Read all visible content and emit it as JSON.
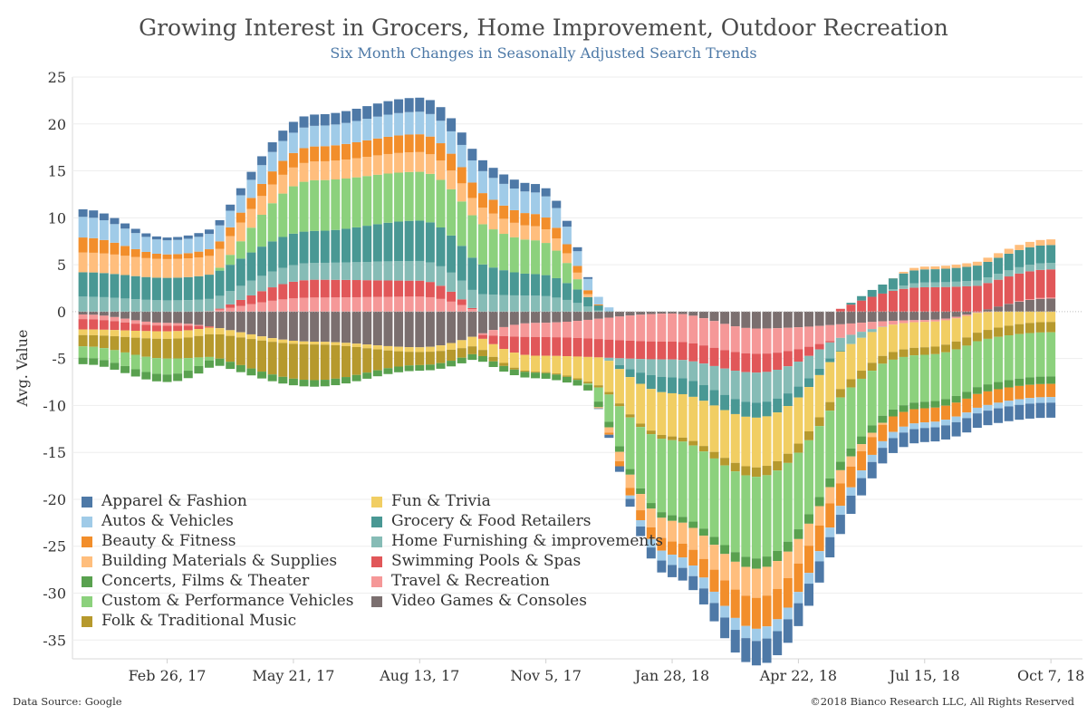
{
  "header": {
    "title": "Growing Interest in Grocers, Home Improvement, Outdoor Recreation",
    "subtitle": "Six Month Changes in Seasonally Adjusted Search Trends"
  },
  "footer": {
    "source": "Data Source: Google",
    "copyright": "©2018 Bianco Research LLC, All Rights Reserved"
  },
  "chart_data": {
    "type": "bar",
    "stacked": true,
    "title": "Growing Interest in Grocers, Home Improvement, Outdoor Recreation",
    "subtitle": "Six Month Changes in Seasonally Adjusted Search Trends",
    "ylabel": "Avg. Value",
    "xlabel": "",
    "ylim": [
      -37,
      25
    ],
    "yticks": [
      25,
      20,
      15,
      10,
      5,
      0,
      -5,
      -10,
      -15,
      -20,
      -25,
      -30,
      -35
    ],
    "xlim": [
      "Dec 25, 16",
      "Oct 28, 18"
    ],
    "xticks": [
      "Feb 26, 17",
      "May 21, 17",
      "Aug 13, 17",
      "Nov 5, 17",
      "Jan 28, 18",
      "Apr 22, 18",
      "Jul 15, 18",
      "Oct 7, 18"
    ],
    "x_start": "Jan 1, 17",
    "x_end": "Oct 7, 18",
    "x_interval": "weekly",
    "key_dates": [
      "Jan 1, 17",
      "Feb 26, 17",
      "Jun 4, 17",
      "Aug 13, 17",
      "Oct 29, 17",
      "Jan 28, 18",
      "Mar 25, 18",
      "Jul 15, 18",
      "Oct 7, 18"
    ],
    "legend_position": "bottom-left",
    "grid": true,
    "series": [
      {
        "name": "Video Games & Consoles",
        "color": "#7b6f6f",
        "keypoints": [
          -0.3,
          -1.2,
          -3.2,
          -3.8,
          -1.2,
          -0.2,
          -1.8,
          -0.9,
          1.4
        ]
      },
      {
        "name": "Travel & Recreation",
        "color": "#f59898",
        "keypoints": [
          -0.5,
          -0.3,
          1.5,
          1.6,
          -1.5,
          -3.0,
          -2.7,
          -0.2,
          0.1
        ]
      },
      {
        "name": "Swimming Pools & Spas",
        "color": "#e15759",
        "keypoints": [
          -1.1,
          -0.6,
          1.9,
          1.7,
          -2.0,
          -1.9,
          -2.0,
          2.6,
          3.0
        ]
      },
      {
        "name": "Home Furnishing & improvements",
        "color": "#86bcb6",
        "keypoints": [
          1.6,
          1.2,
          1.8,
          2.1,
          1.7,
          -1.9,
          -3.2,
          0.5,
          0.7
        ]
      },
      {
        "name": "Grocery & Food Retailers",
        "color": "#499894",
        "keypoints": [
          2.6,
          2.4,
          3.4,
          4.3,
          2.3,
          -1.7,
          -1.6,
          1.4,
          1.9
        ]
      },
      {
        "name": "Fun & Trivia",
        "color": "#f1ce63",
        "keypoints": [
          -0.6,
          -0.8,
          -0.3,
          -0.5,
          -1.7,
          -4.6,
          -5.3,
          -2.7,
          -1.1
        ]
      },
      {
        "name": "Folk & Traditional Music",
        "color": "#b6992d",
        "keypoints": [
          -1.2,
          -2.1,
          -3.8,
          -1.4,
          -0.1,
          -0.4,
          -1.0,
          -0.8,
          -1.1
        ]
      },
      {
        "name": "Custom & Performance Vehicles",
        "color": "#8cd17d",
        "keypoints": [
          -1.2,
          -1.7,
          5.4,
          5.2,
          3.6,
          -8.0,
          -8.7,
          -5.0,
          -4.7
        ]
      },
      {
        "name": "Concerts, Films & Theater",
        "color": "#59a14f",
        "keypoints": [
          -0.7,
          -0.8,
          -0.7,
          -0.6,
          -0.6,
          -0.6,
          -1.1,
          -0.7,
          -0.8
        ]
      },
      {
        "name": "Building Materials & Supplies",
        "color": "#ffbe7d",
        "keypoints": [
          2.1,
          2.0,
          2.0,
          2.1,
          1.5,
          -2.2,
          -3.1,
          0.3,
          0.6
        ]
      },
      {
        "name": "Beauty & Fitness",
        "color": "#f28e2b",
        "keypoints": [
          1.6,
          0.5,
          1.6,
          1.9,
          1.3,
          -1.4,
          -3.3,
          -1.5,
          -1.4
        ]
      },
      {
        "name": "Autos & Vehicles",
        "color": "#a0cbe8",
        "keypoints": [
          2.2,
          1.5,
          2.2,
          2.4,
          2.3,
          -1.1,
          -1.3,
          -0.6,
          -0.6
        ]
      },
      {
        "name": "Apparel & Fashion",
        "color": "#4e79a7",
        "keypoints": [
          0.8,
          0.3,
          1.2,
          1.5,
          0.9,
          -1.3,
          -2.6,
          -1.5,
          -1.6
        ]
      }
    ]
  },
  "legend": [
    {
      "label": "Apparel & Fashion",
      "color": "#4e79a7"
    },
    {
      "label": "Autos & Vehicles",
      "color": "#a0cbe8"
    },
    {
      "label": "Beauty & Fitness",
      "color": "#f28e2b"
    },
    {
      "label": "Building Materials & Supplies",
      "color": "#ffbe7d"
    },
    {
      "label": "Concerts, Films & Theater",
      "color": "#59a14f"
    },
    {
      "label": "Custom & Performance Vehicles",
      "color": "#8cd17d"
    },
    {
      "label": "Folk & Traditional Music",
      "color": "#b6992d"
    },
    {
      "label": "Fun & Trivia",
      "color": "#f1ce63"
    },
    {
      "label": "Grocery & Food Retailers",
      "color": "#499894"
    },
    {
      "label": "Home Furnishing & improvements",
      "color": "#86bcb6"
    },
    {
      "label": "Swimming Pools & Spas",
      "color": "#e15759"
    },
    {
      "label": "Travel & Recreation",
      "color": "#f59898"
    },
    {
      "label": "Video Games & Consoles",
      "color": "#7b6f6f"
    }
  ]
}
